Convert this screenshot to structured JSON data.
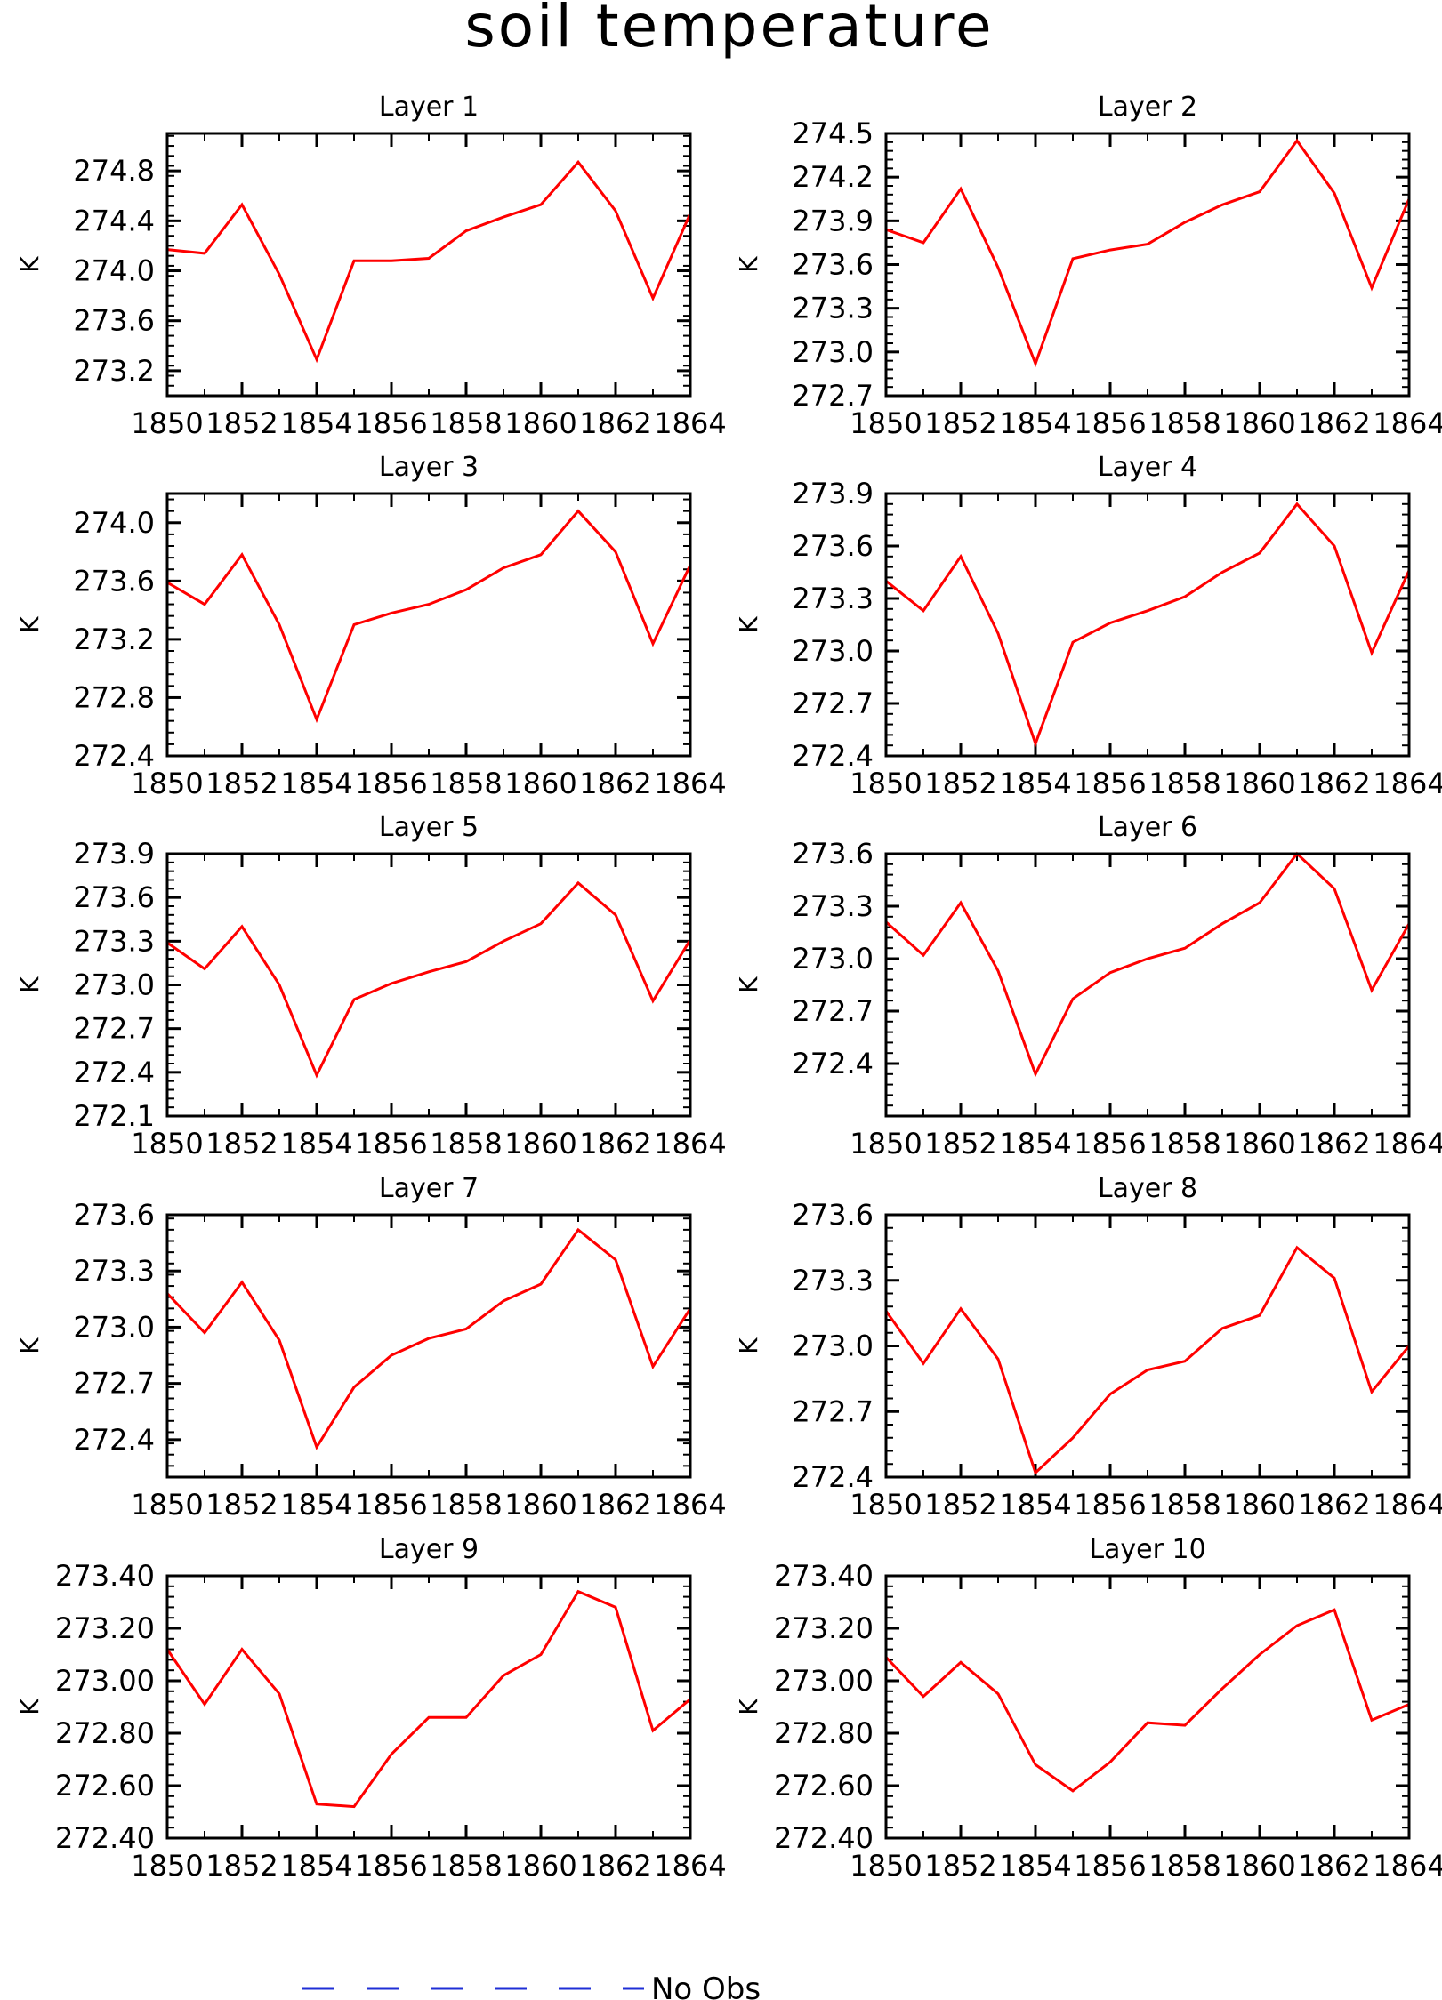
{
  "title": "soil temperature",
  "legend": {
    "label": "No Obs",
    "color": "#1f2fd6",
    "style": "dashed",
    "placement": "bottom-center"
  },
  "chart_data": [
    {
      "type": "line",
      "title": "Layer 1",
      "ylabel": "K",
      "x": [
        1850,
        1851,
        1852,
        1853,
        1854,
        1855,
        1856,
        1857,
        1858,
        1859,
        1860,
        1861,
        1862,
        1863,
        1864
      ],
      "xticks": [
        "1850",
        "1852",
        "1854",
        "1856",
        "1858",
        "1860",
        "1862",
        "1864"
      ],
      "ylim": [
        273.0,
        275.1
      ],
      "yticks": [
        "273.2",
        "273.6",
        "274.0",
        "274.4",
        "274.8"
      ],
      "ytick_values": [
        273.2,
        273.6,
        274.0,
        274.4,
        274.8
      ],
      "series": [
        {
          "color": "#ff0000",
          "values": [
            274.17,
            274.14,
            274.53,
            273.97,
            273.29,
            274.08,
            274.08,
            274.1,
            274.32,
            274.43,
            274.53,
            274.87,
            274.48,
            273.78,
            274.46
          ]
        }
      ]
    },
    {
      "type": "line",
      "title": "Layer 2",
      "ylabel": "K",
      "x": [
        1850,
        1851,
        1852,
        1853,
        1854,
        1855,
        1856,
        1857,
        1858,
        1859,
        1860,
        1861,
        1862,
        1863,
        1864
      ],
      "xticks": [
        "1850",
        "1852",
        "1854",
        "1856",
        "1858",
        "1860",
        "1862",
        "1864"
      ],
      "ylim": [
        272.7,
        274.5
      ],
      "yticks": [
        "272.7",
        "273.0",
        "273.3",
        "273.6",
        "273.9",
        "274.2",
        "274.5"
      ],
      "ytick_values": [
        272.7,
        273.0,
        273.3,
        273.6,
        273.9,
        274.2,
        274.5
      ],
      "series": [
        {
          "color": "#ff0000",
          "values": [
            273.84,
            273.75,
            274.12,
            273.58,
            272.92,
            273.64,
            273.7,
            273.74,
            273.89,
            274.01,
            274.1,
            274.45,
            274.09,
            273.44,
            274.05
          ]
        }
      ]
    },
    {
      "type": "line",
      "title": "Layer 3",
      "ylabel": "K",
      "x": [
        1850,
        1851,
        1852,
        1853,
        1854,
        1855,
        1856,
        1857,
        1858,
        1859,
        1860,
        1861,
        1862,
        1863,
        1864
      ],
      "xticks": [
        "1850",
        "1852",
        "1854",
        "1856",
        "1858",
        "1860",
        "1862",
        "1864"
      ],
      "ylim": [
        272.4,
        274.2
      ],
      "yticks": [
        "272.4",
        "272.8",
        "273.2",
        "273.6",
        "274.0"
      ],
      "ytick_values": [
        272.4,
        272.8,
        273.2,
        273.6,
        274.0
      ],
      "series": [
        {
          "color": "#ff0000",
          "values": [
            273.59,
            273.44,
            273.78,
            273.3,
            272.65,
            273.3,
            273.38,
            273.44,
            273.54,
            273.69,
            273.78,
            274.08,
            273.8,
            273.17,
            273.71
          ]
        }
      ]
    },
    {
      "type": "line",
      "title": "Layer 4",
      "ylabel": "K",
      "x": [
        1850,
        1851,
        1852,
        1853,
        1854,
        1855,
        1856,
        1857,
        1858,
        1859,
        1860,
        1861,
        1862,
        1863,
        1864
      ],
      "xticks": [
        "1850",
        "1852",
        "1854",
        "1856",
        "1858",
        "1860",
        "1862",
        "1864"
      ],
      "ylim": [
        272.4,
        273.9
      ],
      "yticks": [
        "272.4",
        "272.7",
        "273.0",
        "273.3",
        "273.6",
        "273.9"
      ],
      "ytick_values": [
        272.4,
        272.7,
        273.0,
        273.3,
        273.6,
        273.9
      ],
      "series": [
        {
          "color": "#ff0000",
          "values": [
            273.4,
            273.23,
            273.54,
            273.1,
            272.47,
            273.05,
            273.16,
            273.23,
            273.31,
            273.45,
            273.56,
            273.84,
            273.6,
            272.99,
            273.46
          ]
        }
      ]
    },
    {
      "type": "line",
      "title": "Layer 5",
      "ylabel": "K",
      "x": [
        1850,
        1851,
        1852,
        1853,
        1854,
        1855,
        1856,
        1857,
        1858,
        1859,
        1860,
        1861,
        1862,
        1863,
        1864
      ],
      "xticks": [
        "1850",
        "1852",
        "1854",
        "1856",
        "1858",
        "1860",
        "1862",
        "1864"
      ],
      "ylim": [
        272.1,
        273.9
      ],
      "yticks": [
        "272.1",
        "272.4",
        "272.7",
        "273.0",
        "273.3",
        "273.6",
        "273.9"
      ],
      "ytick_values": [
        272.1,
        272.4,
        272.7,
        273.0,
        273.3,
        273.6,
        273.9
      ],
      "series": [
        {
          "color": "#ff0000",
          "values": [
            273.29,
            273.11,
            273.4,
            273.0,
            272.38,
            272.9,
            273.01,
            273.09,
            273.16,
            273.3,
            273.42,
            273.7,
            273.48,
            272.89,
            273.31
          ]
        }
      ]
    },
    {
      "type": "line",
      "title": "Layer 6",
      "ylabel": "K",
      "x": [
        1850,
        1851,
        1852,
        1853,
        1854,
        1855,
        1856,
        1857,
        1858,
        1859,
        1860,
        1861,
        1862,
        1863,
        1864
      ],
      "xticks": [
        "1850",
        "1852",
        "1854",
        "1856",
        "1858",
        "1860",
        "1862",
        "1864"
      ],
      "ylim": [
        272.1,
        273.6
      ],
      "yticks": [
        "272.4",
        "272.7",
        "273.0",
        "273.3",
        "273.6"
      ],
      "ytick_values": [
        272.4,
        272.7,
        273.0,
        273.3,
        273.6
      ],
      "series": [
        {
          "color": "#ff0000",
          "values": [
            273.21,
            273.02,
            273.32,
            272.93,
            272.34,
            272.77,
            272.92,
            273.0,
            273.06,
            273.2,
            273.32,
            273.6,
            273.4,
            272.82,
            273.2
          ]
        }
      ]
    },
    {
      "type": "line",
      "title": "Layer 7",
      "ylabel": "K",
      "x": [
        1850,
        1851,
        1852,
        1853,
        1854,
        1855,
        1856,
        1857,
        1858,
        1859,
        1860,
        1861,
        1862,
        1863,
        1864
      ],
      "xticks": [
        "1850",
        "1852",
        "1854",
        "1856",
        "1858",
        "1860",
        "1862",
        "1864"
      ],
      "ylim": [
        272.2,
        273.6
      ],
      "yticks": [
        "272.4",
        "272.7",
        "273.0",
        "273.3",
        "273.6"
      ],
      "ytick_values": [
        272.4,
        272.7,
        273.0,
        273.3,
        273.6
      ],
      "series": [
        {
          "color": "#ff0000",
          "values": [
            273.18,
            272.97,
            273.24,
            272.93,
            272.36,
            272.68,
            272.85,
            272.94,
            272.99,
            273.14,
            273.23,
            273.52,
            273.36,
            272.79,
            273.1
          ]
        }
      ]
    },
    {
      "type": "line",
      "title": "Layer 8",
      "ylabel": "K",
      "x": [
        1850,
        1851,
        1852,
        1853,
        1854,
        1855,
        1856,
        1857,
        1858,
        1859,
        1860,
        1861,
        1862,
        1863,
        1864
      ],
      "xticks": [
        "1850",
        "1852",
        "1854",
        "1856",
        "1858",
        "1860",
        "1862",
        "1864"
      ],
      "ylim": [
        272.4,
        273.6
      ],
      "yticks": [
        "272.4",
        "272.7",
        "273.0",
        "273.3",
        "273.6"
      ],
      "ytick_values": [
        272.4,
        272.7,
        273.0,
        273.3,
        273.6
      ],
      "series": [
        {
          "color": "#ff0000",
          "values": [
            273.16,
            272.92,
            273.17,
            272.94,
            272.42,
            272.58,
            272.78,
            272.89,
            272.93,
            273.08,
            273.14,
            273.45,
            273.31,
            272.79,
            273.0
          ]
        }
      ]
    },
    {
      "type": "line",
      "title": "Layer 9",
      "ylabel": "K",
      "x": [
        1850,
        1851,
        1852,
        1853,
        1854,
        1855,
        1856,
        1857,
        1858,
        1859,
        1860,
        1861,
        1862,
        1863,
        1864
      ],
      "xticks": [
        "1850",
        "1852",
        "1854",
        "1856",
        "1858",
        "1860",
        "1862",
        "1864"
      ],
      "ylim": [
        272.4,
        273.4
      ],
      "yticks": [
        "272.40",
        "272.60",
        "272.80",
        "273.00",
        "273.20",
        "273.40"
      ],
      "ytick_values": [
        272.4,
        272.6,
        272.8,
        273.0,
        273.2,
        273.4
      ],
      "series": [
        {
          "color": "#ff0000",
          "values": [
            273.12,
            272.91,
            273.12,
            272.95,
            272.53,
            272.52,
            272.72,
            272.86,
            272.86,
            273.02,
            273.1,
            273.34,
            273.28,
            272.81,
            272.93
          ]
        }
      ]
    },
    {
      "type": "line",
      "title": "Layer 10",
      "ylabel": "K",
      "x": [
        1850,
        1851,
        1852,
        1853,
        1854,
        1855,
        1856,
        1857,
        1858,
        1859,
        1860,
        1861,
        1862,
        1863,
        1864
      ],
      "xticks": [
        "1850",
        "1852",
        "1854",
        "1856",
        "1858",
        "1860",
        "1862",
        "1864"
      ],
      "ylim": [
        272.4,
        273.4
      ],
      "yticks": [
        "272.40",
        "272.60",
        "272.80",
        "273.00",
        "273.20",
        "273.40"
      ],
      "ytick_values": [
        272.4,
        272.6,
        272.8,
        273.0,
        273.2,
        273.4
      ],
      "series": [
        {
          "color": "#ff0000",
          "values": [
            273.09,
            272.94,
            273.07,
            272.95,
            272.68,
            272.58,
            272.69,
            272.84,
            272.83,
            272.97,
            273.1,
            273.21,
            273.27,
            272.85,
            272.91
          ]
        }
      ]
    }
  ]
}
